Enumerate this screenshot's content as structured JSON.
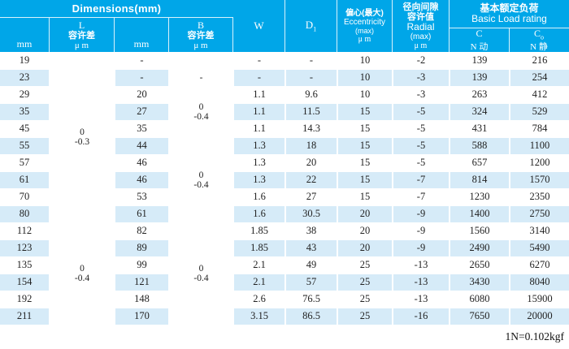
{
  "colors": {
    "header_bg": "#00A6E8",
    "header_text": "#FFFFFF",
    "row_stripe": "#D6EBF8",
    "body_text": "#222222"
  },
  "header": {
    "dimensions_title": "Dimensions(mm)",
    "l_unit": "mm",
    "l_tol": {
      "letter": "L",
      "cn": "容许差",
      "unit": "μ m"
    },
    "b_unit": "mm",
    "b_tol": {
      "letter": "B",
      "cn": "容许差",
      "unit": "μ m"
    },
    "w_label": "W",
    "d_label": {
      "base": "D",
      "sub": "1"
    },
    "eccentricity": {
      "cn": "偏心(最大)",
      "en": "Eccentricity",
      "max": "(max)",
      "unit": "μ m"
    },
    "radial": {
      "cn1": "径向间隙",
      "cn2": "容许值",
      "en": "Radial",
      "max": "(max)",
      "unit": "μ m"
    },
    "basic_load": {
      "cn": "基本额定负荷",
      "en": "Basic Load rating",
      "c_dynamic": {
        "base": "C",
        "sub": "",
        "line2": "N 动"
      },
      "c_static": {
        "base": "C",
        "sub": "o",
        "line2": "N 静"
      }
    }
  },
  "table": {
    "rows": [
      {
        "l": "19",
        "b": "-",
        "w": "-",
        "d1": "-",
        "ecc": "10",
        "radial": "-2",
        "c": "139",
        "co": "216"
      },
      {
        "l": "23",
        "b": "-",
        "w": "-",
        "d1": "-",
        "ecc": "10",
        "radial": "-3",
        "c": "139",
        "co": "254"
      },
      {
        "l": "29",
        "b": "20",
        "w": "1.1",
        "d1": "9.6",
        "ecc": "10",
        "radial": "-3",
        "c": "263",
        "co": "412"
      },
      {
        "l": "35",
        "b": "27",
        "w": "1.1",
        "d1": "11.5",
        "ecc": "15",
        "radial": "-5",
        "c": "324",
        "co": "529"
      },
      {
        "l": "45",
        "b": "35",
        "w": "1.1",
        "d1": "14.3",
        "ecc": "15",
        "radial": "-5",
        "c": "431",
        "co": "784"
      },
      {
        "l": "55",
        "b": "44",
        "w": "1.3",
        "d1": "18",
        "ecc": "15",
        "radial": "-5",
        "c": "588",
        "co": "1100"
      },
      {
        "l": "57",
        "b": "46",
        "w": "1.3",
        "d1": "20",
        "ecc": "15",
        "radial": "-5",
        "c": "657",
        "co": "1200"
      },
      {
        "l": "61",
        "b": "46",
        "w": "1.3",
        "d1": "22",
        "ecc": "15",
        "radial": "-7",
        "c": "814",
        "co": "1570"
      },
      {
        "l": "70",
        "b": "53",
        "w": "1.6",
        "d1": "27",
        "ecc": "15",
        "radial": "-7",
        "c": "1230",
        "co": "2350"
      },
      {
        "l": "80",
        "b": "61",
        "w": "1.6",
        "d1": "30.5",
        "ecc": "20",
        "radial": "-9",
        "c": "1400",
        "co": "2750"
      },
      {
        "l": "112",
        "b": "82",
        "w": "1.85",
        "d1": "38",
        "ecc": "20",
        "radial": "-9",
        "c": "1560",
        "co": "3140"
      },
      {
        "l": "123",
        "b": "89",
        "w": "1.85",
        "d1": "43",
        "ecc": "20",
        "radial": "-9",
        "c": "2490",
        "co": "5490"
      },
      {
        "l": "135",
        "b": "99",
        "w": "2.1",
        "d1": "49",
        "ecc": "25",
        "radial": "-13",
        "c": "2650",
        "co": "6270"
      },
      {
        "l": "154",
        "b": "121",
        "w": "2.1",
        "d1": "57",
        "ecc": "25",
        "radial": "-13",
        "c": "3430",
        "co": "8040"
      },
      {
        "l": "192",
        "b": "148",
        "w": "2.6",
        "d1": "76.5",
        "ecc": "25",
        "radial": "-13",
        "c": "6080",
        "co": "15900"
      },
      {
        "l": "211",
        "b": "170",
        "w": "3.15",
        "d1": "86.5",
        "ecc": "25",
        "radial": "-16",
        "c": "7650",
        "co": "20000"
      }
    ],
    "l_tol_groups": [
      {
        "start": 1,
        "span": 10,
        "text": "0\n-0.3"
      },
      {
        "start": 11,
        "span": 6,
        "text": "0\n-0.4"
      }
    ],
    "b_tol_groups": [
      {
        "start": 1,
        "span": 1,
        "text": ""
      },
      {
        "start": 2,
        "span": 1,
        "text": "-"
      },
      {
        "start": 3,
        "span": 3,
        "text": "0\n-0.4"
      },
      {
        "start": 6,
        "span": 5,
        "text": "0\n-0.4"
      },
      {
        "start": 11,
        "span": 6,
        "text": "0\n-0.4"
      }
    ]
  },
  "footer": {
    "note": "1N=0.102kgf"
  }
}
